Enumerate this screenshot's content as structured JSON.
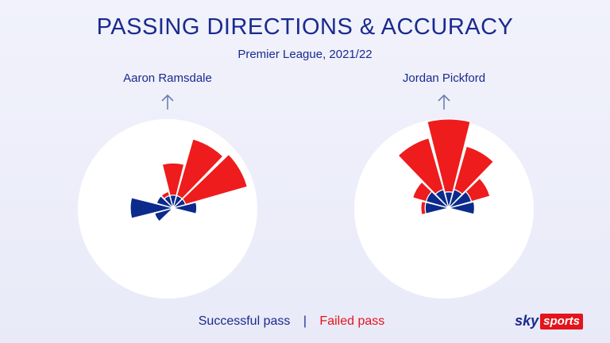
{
  "header": {
    "title": "PASSING DIRECTIONS & ACCURACY",
    "subtitle": "Premier League, 2021/22"
  },
  "legend": {
    "successful": "Successful pass",
    "separator": "|",
    "failed": "Failed pass"
  },
  "logo": {
    "sky": "sky",
    "sports": "sports"
  },
  "colors": {
    "successful": "#0b2a8c",
    "failed": "#ee1c1c",
    "text": "#1a2a8e"
  },
  "icons": [
    "arrow-up-icon",
    "arrow-up-icon"
  ],
  "chart_data": [
    {
      "type": "radial-bar",
      "player": "Aaron Ramsdale",
      "direction_labels_degrees": [
        -120,
        -90,
        -60,
        -30,
        0,
        30,
        60,
        90
      ],
      "successful": [
        18,
        40,
        16,
        12,
        12,
        12,
        12,
        22
      ],
      "failed": [
        0,
        0,
        0,
        4,
        30,
        55,
        60,
        0
      ]
    },
    {
      "type": "radial-bar",
      "player": "Jordan Pickford",
      "direction_labels_degrees": [
        -90,
        -60,
        -30,
        0,
        30,
        60,
        90
      ],
      "successful": [
        22,
        22,
        18,
        15,
        18,
        22,
        24
      ],
      "failed": [
        4,
        13,
        50,
        68,
        42,
        18,
        0
      ]
    }
  ]
}
